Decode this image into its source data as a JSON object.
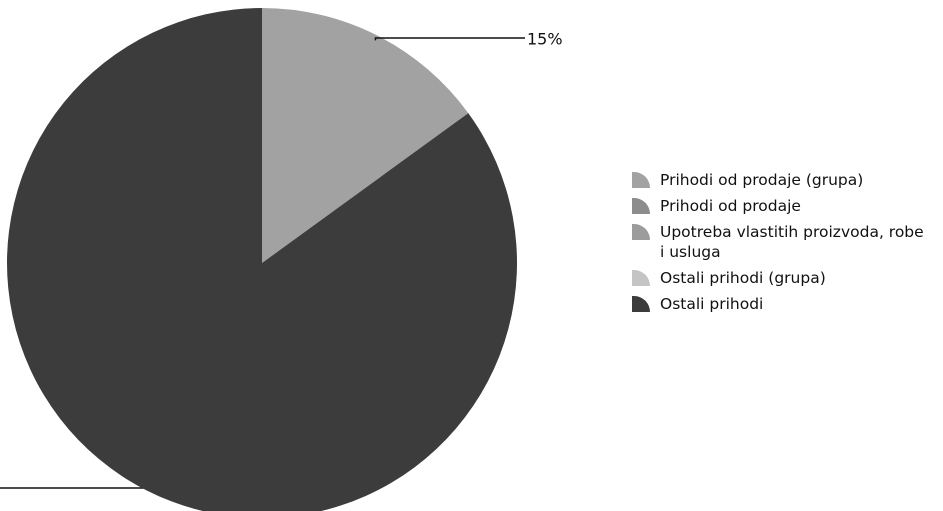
{
  "chart_data": {
    "type": "pie",
    "categories": [
      "Prihodi od prodaje (grupa)",
      "Prihodi od prodaje",
      "Upotreba vlastitih proizvoda, robe i usluga",
      "Ostali prihodi (grupa)",
      "Ostali prihodi"
    ],
    "values": [
      15,
      0,
      0,
      0,
      85
    ],
    "value_labels": [
      "15%",
      null,
      null,
      null,
      null
    ],
    "colors": [
      "#a2a2a2",
      "#8c8c8c",
      "#9c9c9c",
      "#c4c4c4",
      "#3c3c3c"
    ],
    "legend": "right"
  }
}
